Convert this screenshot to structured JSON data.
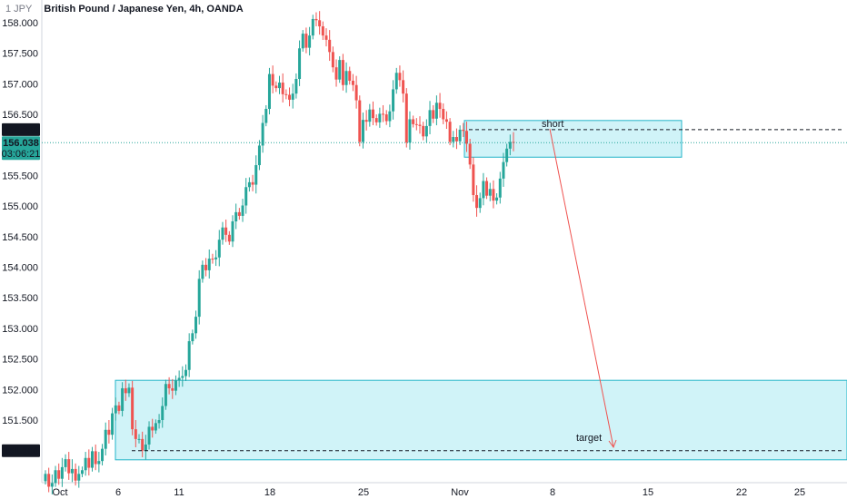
{
  "header": {
    "symbol": "1 JPY",
    "title": "British Pound / Japanese Yen, 4h, OANDA"
  },
  "colors": {
    "up": "#26a69a",
    "down": "#ef5350",
    "zone_fill": "#c8f1f7",
    "zone_stroke": "#22b4c8",
    "arrow": "#ef5350",
    "dashed": "#131722",
    "price_label_bg": "#131722",
    "last_price_bg": "#26a69a"
  },
  "annotations": {
    "short_label": "short",
    "target_label": "target",
    "level_short": "156.250",
    "level_target": "151.000",
    "last_price": "156.038",
    "countdown": "03:06:21"
  },
  "chart_data": {
    "type": "candlestick",
    "title": "British Pound / Japanese Yen, 4h, OANDA",
    "y_ticks": [
      "158.000",
      "157.500",
      "157.000",
      "156.500",
      "156.000",
      "155.500",
      "155.000",
      "154.500",
      "154.000",
      "153.500",
      "153.000",
      "152.500",
      "152.000",
      "151.500"
    ],
    "x_ticks": [
      "Oct",
      "6",
      "11",
      "18",
      "25",
      "Nov",
      "8",
      "15",
      "22",
      "25"
    ],
    "ylim": [
      150.25,
      158.2
    ],
    "grid": false,
    "closes": [
      150.62,
      150.41,
      150.47,
      150.68,
      150.54,
      150.73,
      150.86,
      150.63,
      150.7,
      150.51,
      150.62,
      150.68,
      150.88,
      150.72,
      150.99,
      150.78,
      150.83,
      151.03,
      151.34,
      151.26,
      151.61,
      151.74,
      151.65,
      152.02,
      151.94,
      152.03,
      151.35,
      151.19,
      151.19,
      151.0,
      151.1,
      151.39,
      151.33,
      151.45,
      151.5,
      151.73,
      152.09,
      152.02,
      151.98,
      152.15,
      152.19,
      152.22,
      152.32,
      152.79,
      152.92,
      153.19,
      153.81,
      154.04,
      153.95,
      154.14,
      154.13,
      154.16,
      154.45,
      154.65,
      154.53,
      154.42,
      154.75,
      154.9,
      154.84,
      155.01,
      155.31,
      155.39,
      155.35,
      155.67,
      155.99,
      156.36,
      156.59,
      157.16,
      156.97,
      156.93,
      157.02,
      156.83,
      156.82,
      156.74,
      156.84,
      157.08,
      157.58,
      157.82,
      157.59,
      157.79,
      158.06,
      158.04,
      157.94,
      157.79,
      157.72,
      157.52,
      157.27,
      157.07,
      157.39,
      156.98,
      157.21,
      157.05,
      156.98,
      156.73,
      156.05,
      156.41,
      156.38,
      156.58,
      156.44,
      156.37,
      156.51,
      156.5,
      156.39,
      156.55,
      156.91,
      157.18,
      157.06,
      156.84,
      156.04,
      156.42,
      156.34,
      156.33,
      156.31,
      156.14,
      156.31,
      156.57,
      156.43,
      156.69,
      156.59,
      156.42,
      156.38,
      156.05,
      156.13,
      156.06,
      156.25,
      156.23,
      156.02,
      155.68,
      155.18,
      154.97,
      155.13,
      155.41,
      155.17,
      155.28,
      155.09,
      155.14,
      155.45,
      155.72,
      155.94,
      156.05,
      156.04
    ],
    "opens": [
      150.5,
      150.62,
      150.41,
      150.47,
      150.68,
      150.54,
      150.73,
      150.86,
      150.63,
      150.7,
      150.51,
      150.62,
      150.68,
      150.88,
      150.72,
      150.99,
      150.78,
      150.83,
      151.03,
      151.34,
      151.26,
      151.61,
      151.74,
      151.65,
      152.02,
      151.94,
      152.03,
      151.35,
      151.19,
      151.19,
      151.0,
      151.1,
      151.39,
      151.33,
      151.45,
      151.5,
      151.73,
      152.09,
      152.02,
      151.98,
      152.15,
      152.19,
      152.22,
      152.32,
      152.79,
      152.92,
      153.19,
      153.81,
      154.04,
      153.95,
      154.14,
      154.13,
      154.16,
      154.45,
      154.65,
      154.53,
      154.42,
      154.75,
      154.9,
      154.84,
      155.01,
      155.31,
      155.39,
      155.35,
      155.67,
      155.99,
      156.36,
      156.59,
      157.16,
      156.97,
      156.93,
      157.02,
      156.83,
      156.82,
      156.74,
      156.84,
      157.08,
      157.58,
      157.82,
      157.59,
      157.79,
      158.06,
      158.04,
      157.94,
      157.79,
      157.72,
      157.52,
      157.27,
      157.07,
      157.39,
      156.98,
      157.21,
      157.05,
      156.98,
      156.73,
      156.05,
      156.41,
      156.38,
      156.58,
      156.44,
      156.37,
      156.51,
      156.5,
      156.39,
      156.55,
      156.91,
      157.18,
      157.06,
      156.84,
      156.04,
      156.42,
      156.34,
      156.33,
      156.31,
      156.14,
      156.31,
      156.57,
      156.43,
      156.69,
      156.59,
      156.42,
      156.38,
      156.05,
      156.13,
      156.06,
      156.25,
      156.23,
      156.02,
      155.68,
      155.18,
      154.97,
      155.13,
      155.41,
      155.17,
      155.28,
      155.09,
      155.14,
      155.45,
      155.72,
      155.94,
      156.05
    ],
    "zones": [
      {
        "name": "short",
        "y_low": 155.8,
        "y_high": 156.4,
        "x_start": "Nov",
        "x_end": "18"
      },
      {
        "name": "target",
        "y_low": 150.85,
        "y_high": 152.15,
        "x_start": "6",
        "x_end": "right-edge"
      }
    ],
    "levels": [
      156.25,
      151.0
    ],
    "last_price": 156.038
  }
}
